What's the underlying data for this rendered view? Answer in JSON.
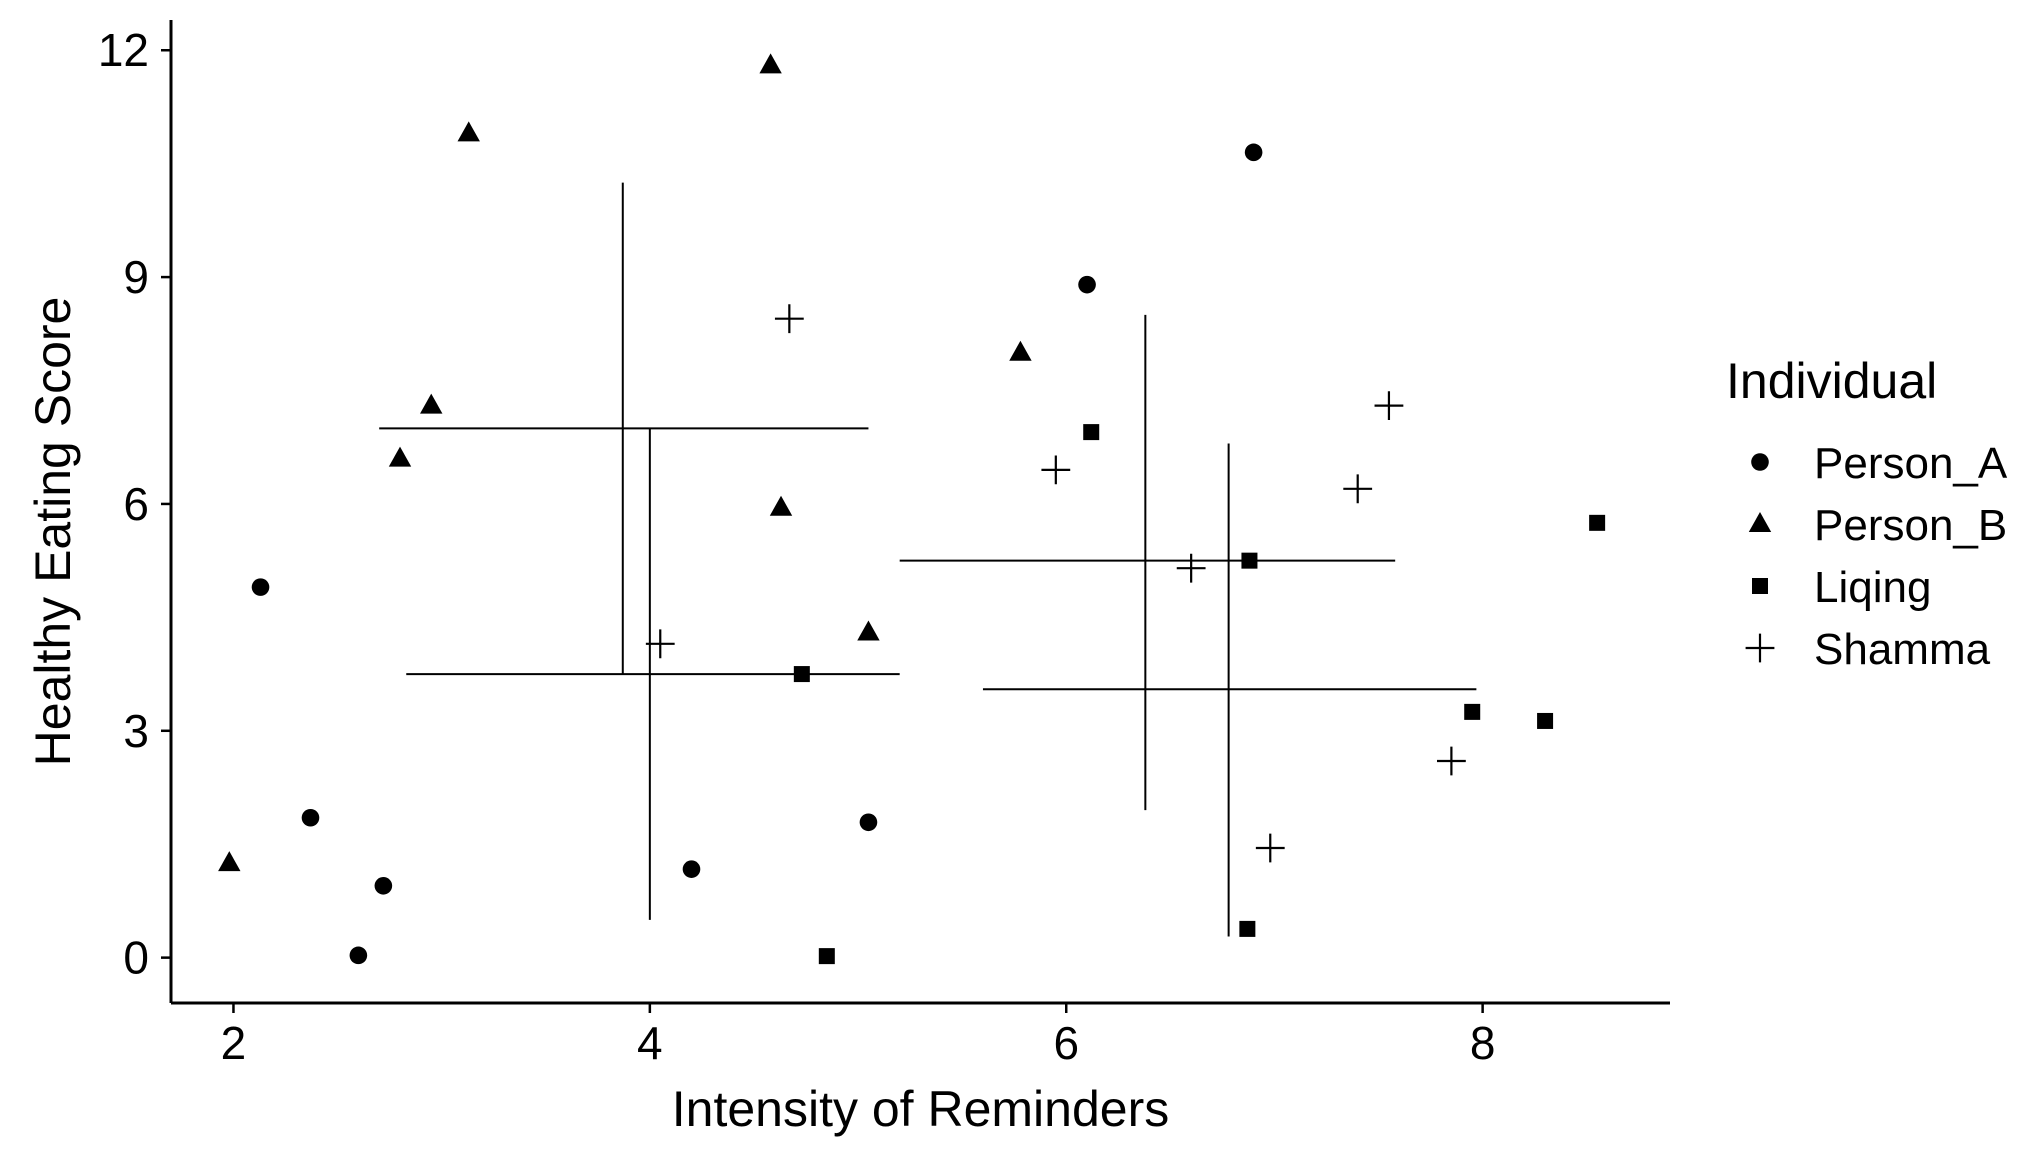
{
  "chart_data": {
    "type": "scatter",
    "title": "",
    "xlabel": "Intensity of Reminders",
    "ylabel": "Healthy Eating Score",
    "xlim": [
      1.7,
      8.9
    ],
    "ylim": [
      -0.6,
      12.4
    ],
    "xticks": [
      2,
      4,
      6,
      8
    ],
    "yticks": [
      0,
      3,
      6,
      9,
      12
    ],
    "grid": false,
    "legend": {
      "title": "Individual",
      "position": "right",
      "entries": [
        {
          "name": "Person_A",
          "shape": "circle"
        },
        {
          "name": "Person_B",
          "shape": "triangle"
        },
        {
          "name": "Liqing",
          "shape": "square"
        },
        {
          "name": "Shamma",
          "shape": "plus"
        }
      ]
    },
    "series": [
      {
        "name": "Person_A",
        "shape": "circle",
        "points": [
          [
            2.13,
            4.9
          ],
          [
            2.37,
            1.85
          ],
          [
            2.6,
            0.03
          ],
          [
            2.72,
            0.95
          ],
          [
            4.2,
            1.17
          ],
          [
            5.05,
            1.79
          ],
          [
            6.1,
            8.9
          ],
          [
            6.9,
            10.65
          ]
        ]
      },
      {
        "name": "Person_B",
        "shape": "triangle",
        "points": [
          [
            1.98,
            1.25
          ],
          [
            2.8,
            6.6
          ],
          [
            2.95,
            7.3
          ],
          [
            3.13,
            10.9
          ],
          [
            4.58,
            11.8
          ],
          [
            4.63,
            5.95
          ],
          [
            5.05,
            4.3
          ],
          [
            5.78,
            8.0
          ]
        ]
      },
      {
        "name": "Liqing",
        "shape": "square",
        "points": [
          [
            4.73,
            3.75
          ],
          [
            4.85,
            0.02
          ],
          [
            6.12,
            6.95
          ],
          [
            6.87,
            0.38
          ],
          [
            6.88,
            5.25
          ],
          [
            7.95,
            3.25
          ],
          [
            8.3,
            3.13
          ],
          [
            8.55,
            5.75
          ]
        ]
      },
      {
        "name": "Shamma",
        "shape": "plus",
        "points": [
          [
            4.05,
            4.15
          ],
          [
            4.67,
            8.45
          ],
          [
            5.95,
            6.45
          ],
          [
            6.6,
            5.15
          ],
          [
            6.98,
            1.45
          ],
          [
            7.4,
            6.2
          ],
          [
            7.55,
            7.3
          ],
          [
            7.85,
            2.6
          ]
        ]
      }
    ],
    "crosshairs": [
      {
        "center": [
          3.87,
          7.0
        ],
        "x_range": [
          2.7,
          5.05
        ],
        "y_range": [
          3.75,
          10.25
        ]
      },
      {
        "center": [
          4.0,
          3.75
        ],
        "x_range": [
          2.83,
          5.2
        ],
        "y_range": [
          0.5,
          7.0
        ]
      },
      {
        "center": [
          6.38,
          5.25
        ],
        "x_range": [
          5.2,
          7.58
        ],
        "y_range": [
          1.95,
          8.5
        ]
      },
      {
        "center": [
          6.78,
          3.55
        ],
        "x_range": [
          5.6,
          7.97
        ],
        "y_range": [
          0.28,
          6.8
        ]
      }
    ]
  }
}
